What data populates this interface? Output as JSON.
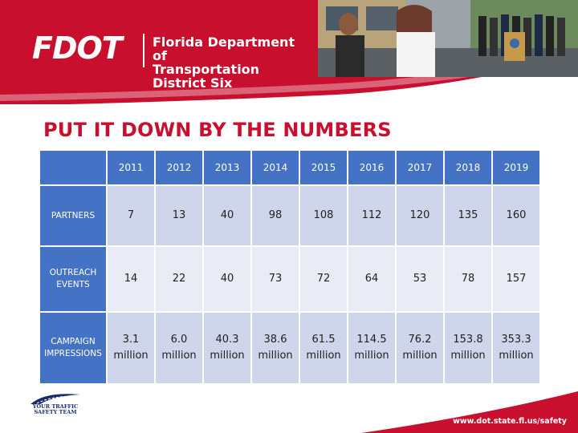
{
  "header": {
    "logo_text": "FDOT",
    "org_line1": "Florida Department of",
    "org_line2": "Transportation District Six"
  },
  "title": "PUT IT DOWN BY THE NUMBERS",
  "table": {
    "years": [
      "2011",
      "2012",
      "2013",
      "2014",
      "2015",
      "2016",
      "2017",
      "2018",
      "2019"
    ],
    "rows": [
      {
        "label_lines": [
          "PARTNERS"
        ],
        "cells": [
          {
            "num": "7"
          },
          {
            "num": "13"
          },
          {
            "num": "40"
          },
          {
            "num": "98"
          },
          {
            "num": "108"
          },
          {
            "num": "112"
          },
          {
            "num": "120"
          },
          {
            "num": "135"
          },
          {
            "num": "160"
          }
        ]
      },
      {
        "label_lines": [
          "OUTREACH",
          "EVENTS"
        ],
        "cells": [
          {
            "num": "14"
          },
          {
            "num": "22"
          },
          {
            "num": "40"
          },
          {
            "num": "73"
          },
          {
            "num": "72"
          },
          {
            "num": "64"
          },
          {
            "num": "53"
          },
          {
            "num": "78"
          },
          {
            "num": "157"
          }
        ]
      },
      {
        "label_lines": [
          "CAMPAIGN",
          "IMPRESSIONS"
        ],
        "cells": [
          {
            "num": "3.1",
            "unit": "million"
          },
          {
            "num": "6.0",
            "unit": "million"
          },
          {
            "num": "40.3",
            "unit": "million"
          },
          {
            "num": "38.6",
            "unit": "million"
          },
          {
            "num": "61.5",
            "unit": "million"
          },
          {
            "num": "114.5",
            "unit": "million"
          },
          {
            "num": "76.2",
            "unit": "million"
          },
          {
            "num": "153.8",
            "unit": "million"
          },
          {
            "num": "353.3",
            "unit": "million"
          }
        ]
      }
    ]
  },
  "footer": {
    "badge_line1": "YOUR TRAFFIC",
    "badge_line2": "SAFETY TEAM",
    "url": "www.dot.state.fl.us/safety"
  },
  "colors": {
    "brand_red": "#c8102e",
    "header_blue": "#4472c4",
    "cell_dark": "#cfd5ea",
    "cell_light": "#e9ebf5"
  }
}
